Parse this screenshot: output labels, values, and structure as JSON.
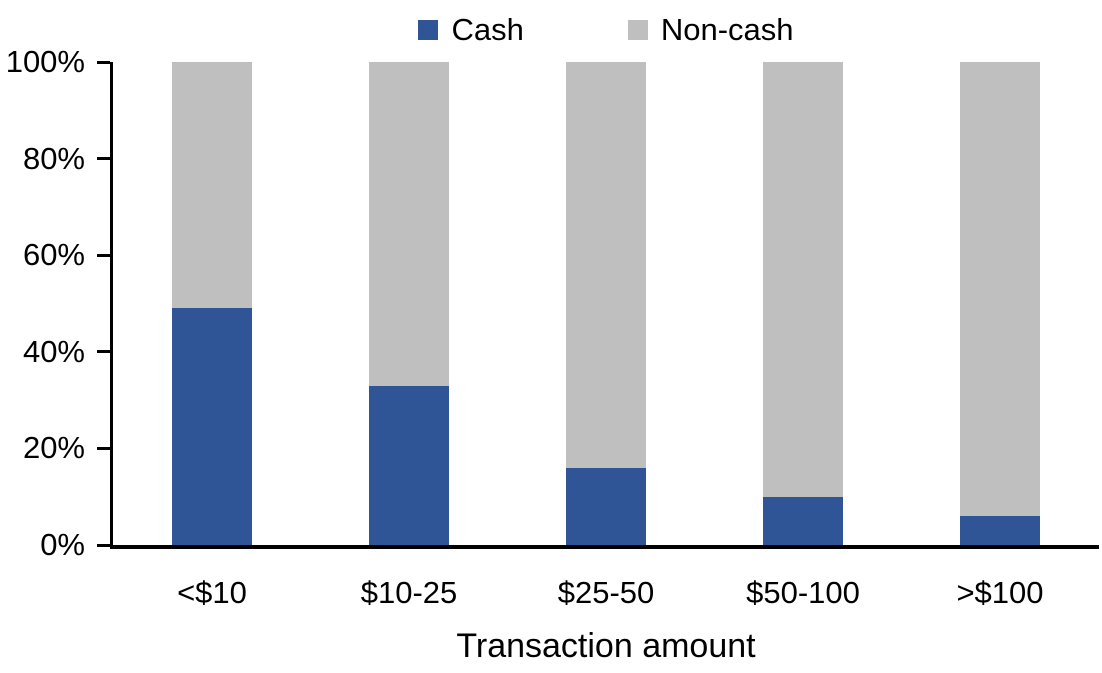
{
  "chart_data": {
    "type": "bar",
    "stacked": true,
    "title": "",
    "xlabel": "Transaction amount",
    "ylabel": "",
    "categories": [
      "<$10",
      "$10-25",
      "$25-50",
      "$50-100",
      ">$100"
    ],
    "series": [
      {
        "name": "Cash",
        "color": "#2F5597",
        "values": [
          49,
          33,
          16,
          10,
          6
        ]
      },
      {
        "name": "Non-cash",
        "color": "#BFBFBF",
        "values": [
          51,
          67,
          84,
          90,
          94
        ]
      }
    ],
    "ylim": [
      0,
      100
    ],
    "y_tick_values": [
      0,
      20,
      40,
      60,
      80,
      100
    ],
    "y_tick_labels": [
      "0%",
      "20%",
      "40%",
      "60%",
      "80%",
      "100%"
    ],
    "legend_position": "top-center",
    "grid": false,
    "axis_color": "#000000",
    "background_color": "#FFFFFF"
  }
}
